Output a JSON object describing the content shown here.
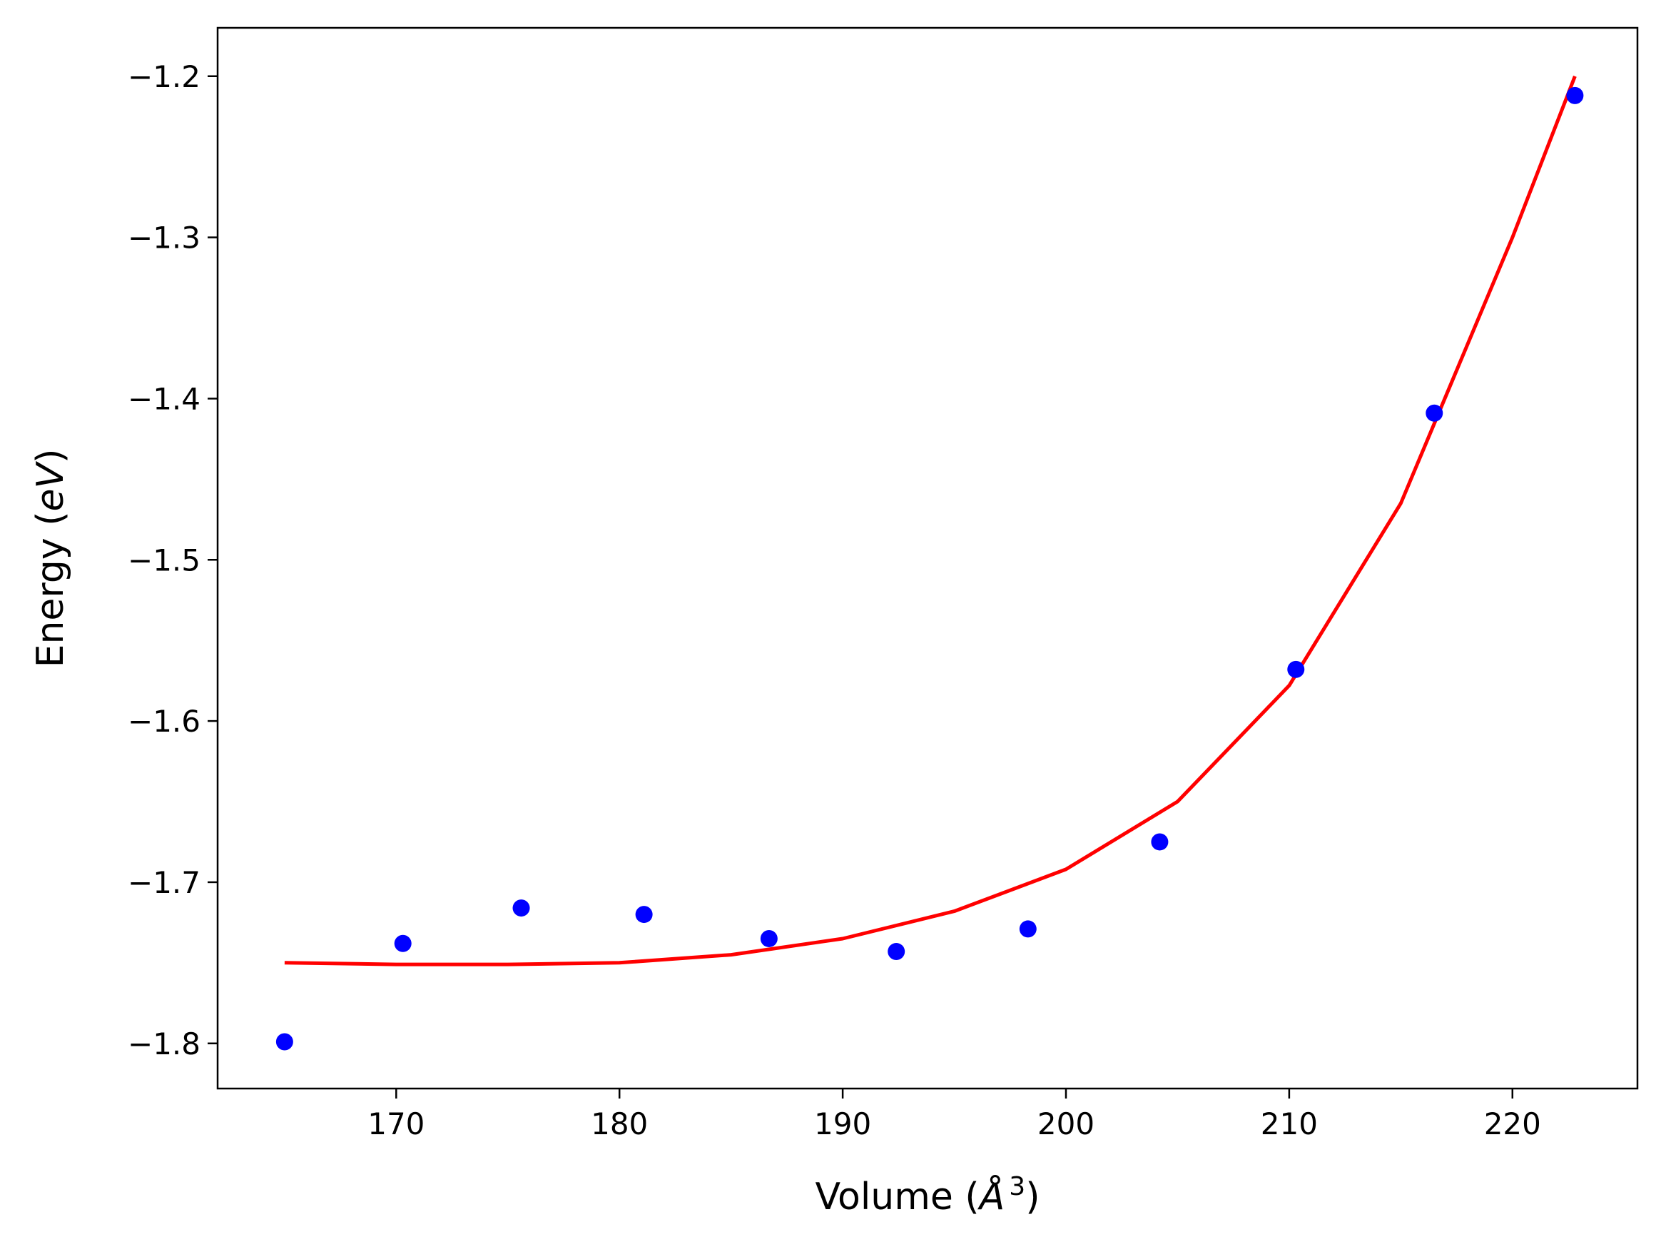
{
  "chart_data": {
    "type": "scatter",
    "title": "",
    "xlabel": "Volume (Å³)",
    "xlabel_parts": {
      "prefix": "Volume (",
      "unit": "Å",
      "power": "3",
      "suffix": ")"
    },
    "ylabel": "Energy (eV)",
    "ylabel_parts": {
      "prefix": "Energy (",
      "unit": "eV",
      "suffix": ")"
    },
    "xlim": [
      162,
      225.6
    ],
    "ylim": [
      -1.828,
      -1.17
    ],
    "grid": false,
    "legend": "none",
    "x_ticks": [
      170,
      180,
      190,
      200,
      210,
      220
    ],
    "x_tick_labels": [
      "170",
      "180",
      "190",
      "200",
      "210",
      "220"
    ],
    "y_ticks": [
      -1.2,
      -1.3,
      -1.4,
      -1.5,
      -1.6,
      -1.7,
      -1.8
    ],
    "y_tick_labels": [
      "−1.2",
      "−1.3",
      "−1.4",
      "−1.5",
      "−1.6",
      "−1.7",
      "−1.8"
    ],
    "series": [
      {
        "kind": "scatter",
        "color": "#0000ff",
        "x": [
          165.0,
          170.3,
          175.6,
          181.1,
          186.7,
          192.4,
          198.3,
          204.2,
          210.3,
          216.5,
          222.8
        ],
        "y": [
          -1.799,
          -1.738,
          -1.716,
          -1.72,
          -1.735,
          -1.743,
          -1.729,
          -1.675,
          -1.568,
          -1.409,
          -1.212
        ]
      },
      {
        "kind": "line",
        "color": "#ff0000",
        "x": [
          165.0,
          170.0,
          175.0,
          180.0,
          185.0,
          190.0,
          195.0,
          200.0,
          205.0,
          210.0,
          215.0,
          220.0,
          222.8
        ],
        "y": [
          -1.75,
          -1.751,
          -1.751,
          -1.75,
          -1.745,
          -1.735,
          -1.718,
          -1.692,
          -1.65,
          -1.578,
          -1.465,
          -1.3,
          -1.2
        ]
      }
    ]
  }
}
